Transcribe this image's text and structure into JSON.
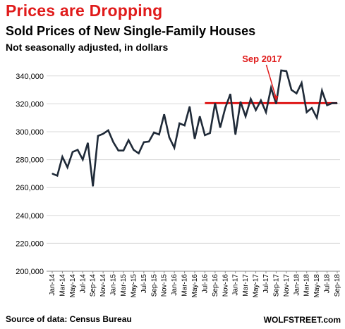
{
  "header": {
    "headline": "Prices are Dropping",
    "title": "Sold Prices of New Single-Family Houses",
    "subtitle": "Not seasonally adjusted, in dollars"
  },
  "footer": {
    "source": "Source of data: Census Bureau",
    "brand": "WOLFSTREET.com"
  },
  "colors": {
    "headline": "#e01b1b",
    "line": "#1f2a38",
    "reference_line": "#e01b1b",
    "grid": "#d9d9d9"
  },
  "chart_data": {
    "type": "line",
    "title": "Sold Prices of New Single-Family Houses",
    "xlabel": "",
    "ylabel": "",
    "ylim": [
      200000,
      350000
    ],
    "yticks": [
      200000,
      220000,
      240000,
      260000,
      280000,
      300000,
      320000,
      340000
    ],
    "ytick_labels": [
      "200,000",
      "220,000",
      "240,000",
      "260,000",
      "280,000",
      "300,000",
      "320,000",
      "340,000"
    ],
    "grid": "horizontal",
    "categories": [
      "Jan-14",
      "Feb-14",
      "Mar-14",
      "Apr-14",
      "May-14",
      "Jun-14",
      "Jul-14",
      "Aug-14",
      "Sep-14",
      "Oct-14",
      "Nov-14",
      "Dec-14",
      "Jan-15",
      "Feb-15",
      "Mar-15",
      "Apr-15",
      "May-15",
      "Jun-15",
      "Jul-15",
      "Aug-15",
      "Sep-15",
      "Oct-15",
      "Nov-15",
      "Dec-15",
      "Jan-16",
      "Feb-16",
      "Mar-16",
      "Apr-16",
      "May-16",
      "Jun-16",
      "Jul-16",
      "Aug-16",
      "Sep-16",
      "Oct-16",
      "Nov-16",
      "Dec-16",
      "Jan-17",
      "Feb-17",
      "Mar-17",
      "Apr-17",
      "May-17",
      "Jun-17",
      "Jul-17",
      "Aug-17",
      "Sep-17",
      "Oct-17",
      "Nov-17",
      "Dec-17",
      "Jan-18",
      "Feb-18",
      "Mar-18",
      "Apr-18",
      "May-18",
      "Jun-18",
      "Jul-18",
      "Aug-18",
      "Sep-18"
    ],
    "xtick_labels": [
      "Jan-14",
      "Mar-14",
      "May-14",
      "Jul-14",
      "Sep-14",
      "Nov-14",
      "Jan-15",
      "Mar-15",
      "May-15",
      "Jul-15",
      "Sep-15",
      "Nov-15",
      "Jan-16",
      "Mar-16",
      "May-16",
      "Jul-16",
      "Sep-16",
      "Nov-16",
      "Jan-17",
      "Mar-17",
      "May-17",
      "Jul-17",
      "Sep-17",
      "Nov-17",
      "Jan-18",
      "Mar-18",
      "May-18",
      "Jul-18",
      "Sep-18"
    ],
    "series": [
      {
        "values": [
          270000,
          268500,
          282000,
          274500,
          285500,
          287000,
          280000,
          292000,
          261000,
          297000,
          298500,
          301000,
          292500,
          286500,
          286500,
          294000,
          287000,
          284500,
          292500,
          293000,
          299500,
          298000,
          312500,
          296000,
          288500,
          306000,
          304500,
          318000,
          295000,
          311000,
          297500,
          299000,
          320500,
          303000,
          317000,
          327000,
          298000,
          321500,
          311000,
          323500,
          315500,
          322500,
          314000,
          331500,
          320000,
          344000,
          343500,
          330000,
          327500,
          335000,
          314000,
          317000,
          310000,
          329500,
          319000,
          320500,
          320500
        ]
      }
    ],
    "reference_line": {
      "from": "Jul-16",
      "to": "Sep-18",
      "value": 320500
    },
    "annotations": [
      {
        "text": "Sep 2017",
        "target": "Sep-17",
        "value": 320000
      }
    ]
  }
}
